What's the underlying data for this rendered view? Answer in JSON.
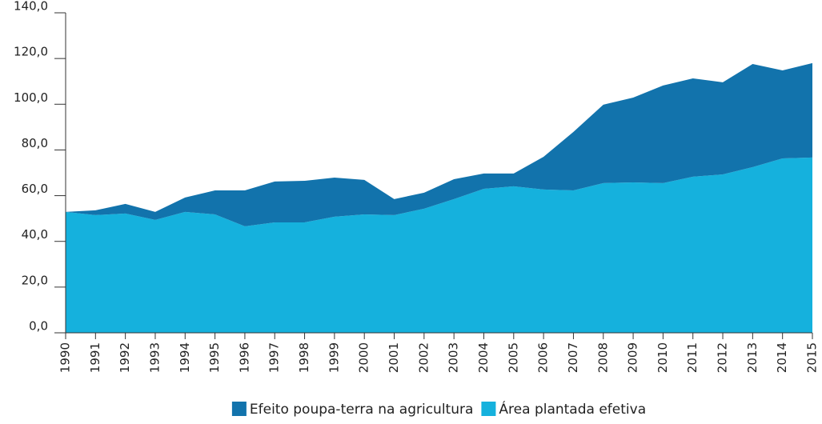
{
  "chart_data": {
    "type": "stacked-area",
    "categories": [
      "1990",
      "1991",
      "1992",
      "1993",
      "1994",
      "1995",
      "1996",
      "1997",
      "1998",
      "1999",
      "2000",
      "2001",
      "2002",
      "2003",
      "2004",
      "2005",
      "2006",
      "2007",
      "2008",
      "2009",
      "2010",
      "2011",
      "2012",
      "2013",
      "2014",
      "2015"
    ],
    "series": [
      {
        "name": "Efeito poupa-terra na agricultura",
        "color": "#1273ac",
        "values": [
          0,
          2.1,
          4.2,
          3.5,
          6.3,
          10.5,
          15.7,
          17.9,
          18.2,
          17.1,
          15.1,
          7.0,
          7.0,
          8.7,
          6.7,
          5.6,
          14.3,
          25.6,
          34.3,
          37.1,
          42.7,
          43.0,
          40.3,
          45.1,
          38.5,
          41.3
        ]
      },
      {
        "name": "Área plantada efetiva",
        "color": "#15b1dd",
        "values": [
          52.9,
          51.5,
          52.2,
          49.4,
          52.9,
          51.8,
          46.6,
          48.3,
          48.3,
          50.8,
          51.8,
          51.5,
          54.3,
          58.5,
          63.0,
          64.1,
          62.7,
          62.3,
          65.5,
          65.8,
          65.5,
          68.3,
          69.3,
          72.5,
          76.3,
          76.7
        ]
      }
    ],
    "ylim": [
      0,
      140
    ],
    "yticks": [
      {
        "value": 0,
        "label": "0,0"
      },
      {
        "value": 20,
        "label": "20,0"
      },
      {
        "value": 40,
        "label": "40,0"
      },
      {
        "value": 60,
        "label": "60,0"
      },
      {
        "value": 80,
        "label": "80,0"
      },
      {
        "value": 100,
        "label": "100,0"
      },
      {
        "value": 120,
        "label": "120,0"
      },
      {
        "value": 140,
        "label": "140,0"
      }
    ],
    "legend": "bottom"
  }
}
